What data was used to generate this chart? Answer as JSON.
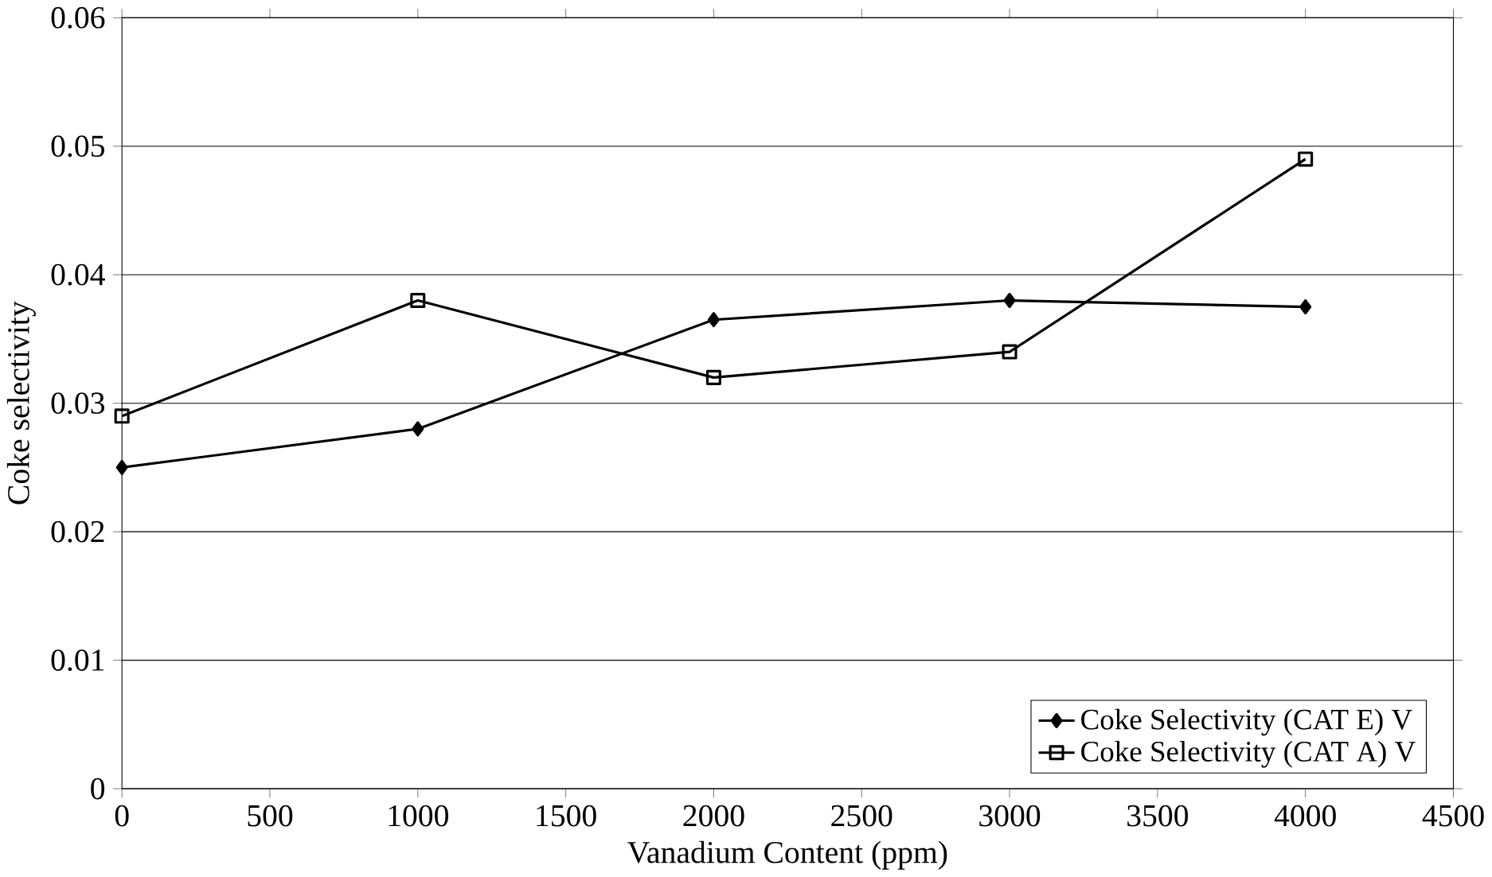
{
  "chart_data": {
    "type": "line",
    "xlabel": "Vanadium Content (ppm)",
    "ylabel": "Coke selectivity",
    "x": [
      0,
      1000,
      2000,
      3000,
      4000
    ],
    "series": [
      {
        "name": "Coke Selectivity (CAT E) V",
        "color": "#000000",
        "marker": "diamond",
        "values": [
          0.025,
          0.028,
          0.0365,
          0.038,
          0.0375
        ]
      },
      {
        "name": "Coke Selectivity (CAT A) V",
        "color": "#000000",
        "marker": "square",
        "values": [
          0.029,
          0.038,
          0.032,
          0.034,
          0.049
        ]
      }
    ],
    "xlim": [
      0,
      4500
    ],
    "xticks": [
      0,
      500,
      1000,
      1500,
      2000,
      2500,
      3000,
      3500,
      4000,
      4500
    ],
    "ylim": [
      0,
      0.06
    ],
    "yticks": [
      0,
      0.01,
      0.02,
      0.03,
      0.04,
      0.05,
      0.06
    ],
    "grid": "y",
    "legend": "bottom right",
    "line_style": "solid"
  }
}
